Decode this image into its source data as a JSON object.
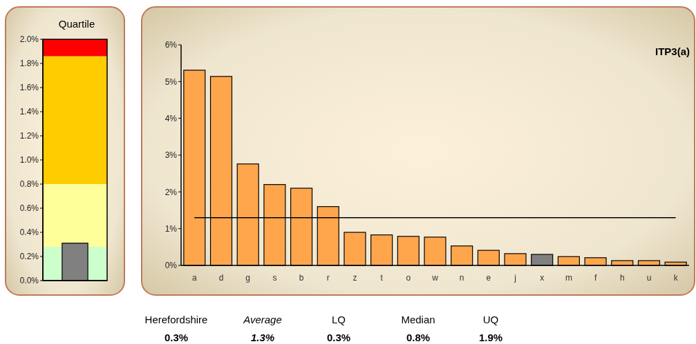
{
  "chart_data": [
    {
      "type": "bar",
      "title": "Quartile",
      "categories": [
        null
      ],
      "values": [
        0.31
      ],
      "colors": [
        "#808080"
      ],
      "ylim": [
        0,
        2
      ],
      "yticks": [
        {
          "value": 0,
          "label": "0.0%"
        },
        {
          "value": 0.2,
          "label": "0.2%"
        },
        {
          "value": 0.4,
          "label": "0.4%"
        },
        {
          "value": 0.6,
          "label": "0.6%"
        },
        {
          "value": 0.8,
          "label": "0.8%"
        },
        {
          "value": 1,
          "label": "1.0%"
        },
        {
          "value": 1.2,
          "label": "1.2%"
        },
        {
          "value": 1.4,
          "label": "1.4%"
        },
        {
          "value": 1.6,
          "label": "1.6%"
        },
        {
          "value": 1.8,
          "label": "1.8%"
        },
        {
          "value": 2,
          "label": "2.0%"
        }
      ],
      "bands": [
        {
          "axis": "y",
          "from": 0,
          "to": 0.28,
          "color": "#ccffcc"
        },
        {
          "axis": "y",
          "from": 0.28,
          "to": 0.8,
          "color": "#ffff99"
        },
        {
          "axis": "y",
          "from": 0.8,
          "to": 1.86,
          "color": "#ffcc00"
        },
        {
          "axis": "y",
          "from": 1.86,
          "to": 2,
          "color": "#ff0000"
        }
      ],
      "grid": false
    },
    {
      "type": "bar",
      "title": "ITP3(a)",
      "categories": [
        "a",
        "d",
        "g",
        "s",
        "b",
        "r",
        "z",
        "t",
        "o",
        "w",
        "n",
        "e",
        "j",
        "x",
        "m",
        "f",
        "h",
        "u",
        "k"
      ],
      "values": [
        5.31,
        5.14,
        2.76,
        2.2,
        2.1,
        1.6,
        0.9,
        0.83,
        0.79,
        0.77,
        0.53,
        0.41,
        0.32,
        0.3,
        0.24,
        0.21,
        0.13,
        0.13,
        0.09
      ],
      "colors": [
        "#ffa64d",
        "#ffa64d",
        "#ffa64d",
        "#ffa64d",
        "#ffa64d",
        "#ffa64d",
        "#ffa64d",
        "#ffa64d",
        "#ffa64d",
        "#ffa64d",
        "#ffa64d",
        "#ffa64d",
        "#ffa64d",
        "#808080",
        "#ffa64d",
        "#ffa64d",
        "#ffa64d",
        "#ffa64d",
        "#ffa64d"
      ],
      "ylim": [
        0,
        6
      ],
      "yticks": [
        {
          "value": 0,
          "label": "0%"
        },
        {
          "value": 1,
          "label": "1%"
        },
        {
          "value": 2,
          "label": "2%"
        },
        {
          "value": 3,
          "label": "3%"
        },
        {
          "value": 4,
          "label": "4%"
        },
        {
          "value": 5,
          "label": "5%"
        },
        {
          "value": 6,
          "label": "6%"
        }
      ],
      "ref_lines": [
        {
          "axis": "y",
          "value": 1.3,
          "color": "#000000"
        }
      ],
      "annotations": [
        "Herefordshire",
        "Average",
        "LQ",
        "Median",
        "UQ",
        "0.3%",
        "1.3%",
        "0.3%",
        "0.8%",
        "1.9%"
      ],
      "grid": false
    }
  ]
}
